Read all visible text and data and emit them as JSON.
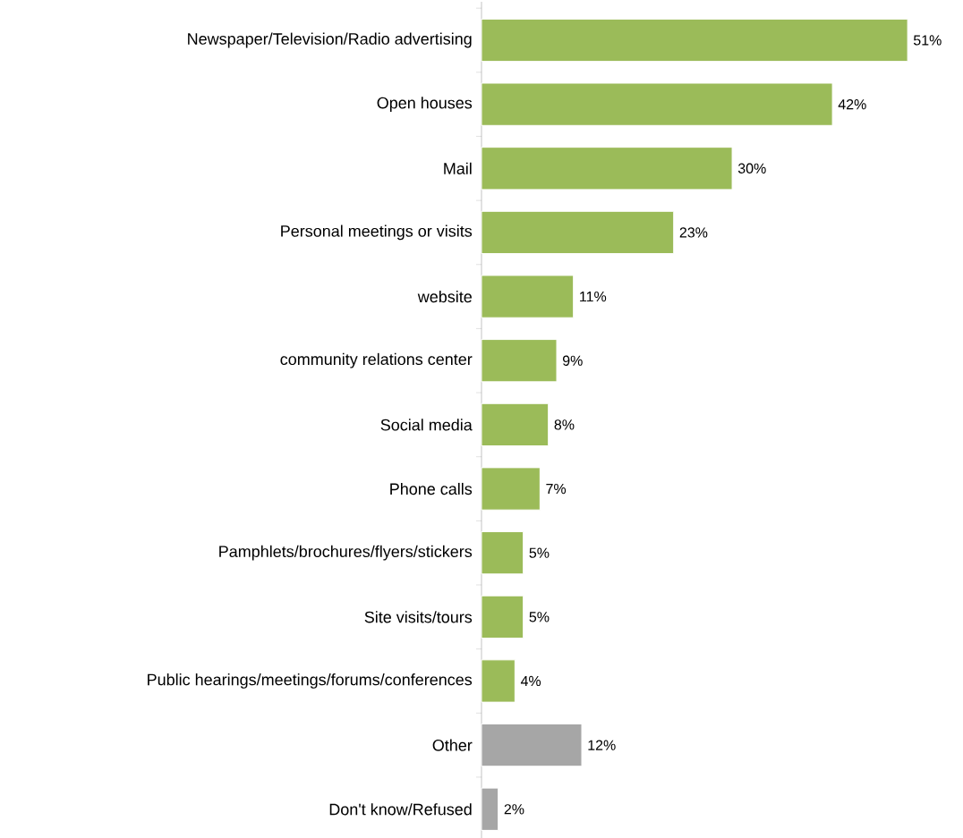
{
  "chart_data": {
    "type": "bar",
    "orientation": "horizontal",
    "categories": [
      "Newspaper/Television/Radio advertising",
      "Open houses",
      "Mail",
      "Personal meetings or visits",
      "website",
      "community relations center",
      "Social media",
      "Phone calls",
      "Pamphlets/brochures/flyers/stickers",
      "Site visits/tours",
      "Public hearings/meetings/forums/conferences",
      "Other",
      "Don't know/Refused"
    ],
    "values": [
      51,
      42,
      30,
      23,
      11,
      9,
      8,
      7,
      5,
      5,
      4,
      12,
      2
    ],
    "value_labels": [
      "51%",
      "42%",
      "30%",
      "23%",
      "11%",
      "9%",
      "8%",
      "7%",
      "5%",
      "5%",
      "4%",
      "12%",
      "2%"
    ],
    "colors": [
      "#9bbb59",
      "#9bbb59",
      "#9bbb59",
      "#9bbb59",
      "#9bbb59",
      "#9bbb59",
      "#9bbb59",
      "#9bbb59",
      "#9bbb59",
      "#9bbb59",
      "#9bbb59",
      "#a6a6a6",
      "#a6a6a6"
    ]
  }
}
